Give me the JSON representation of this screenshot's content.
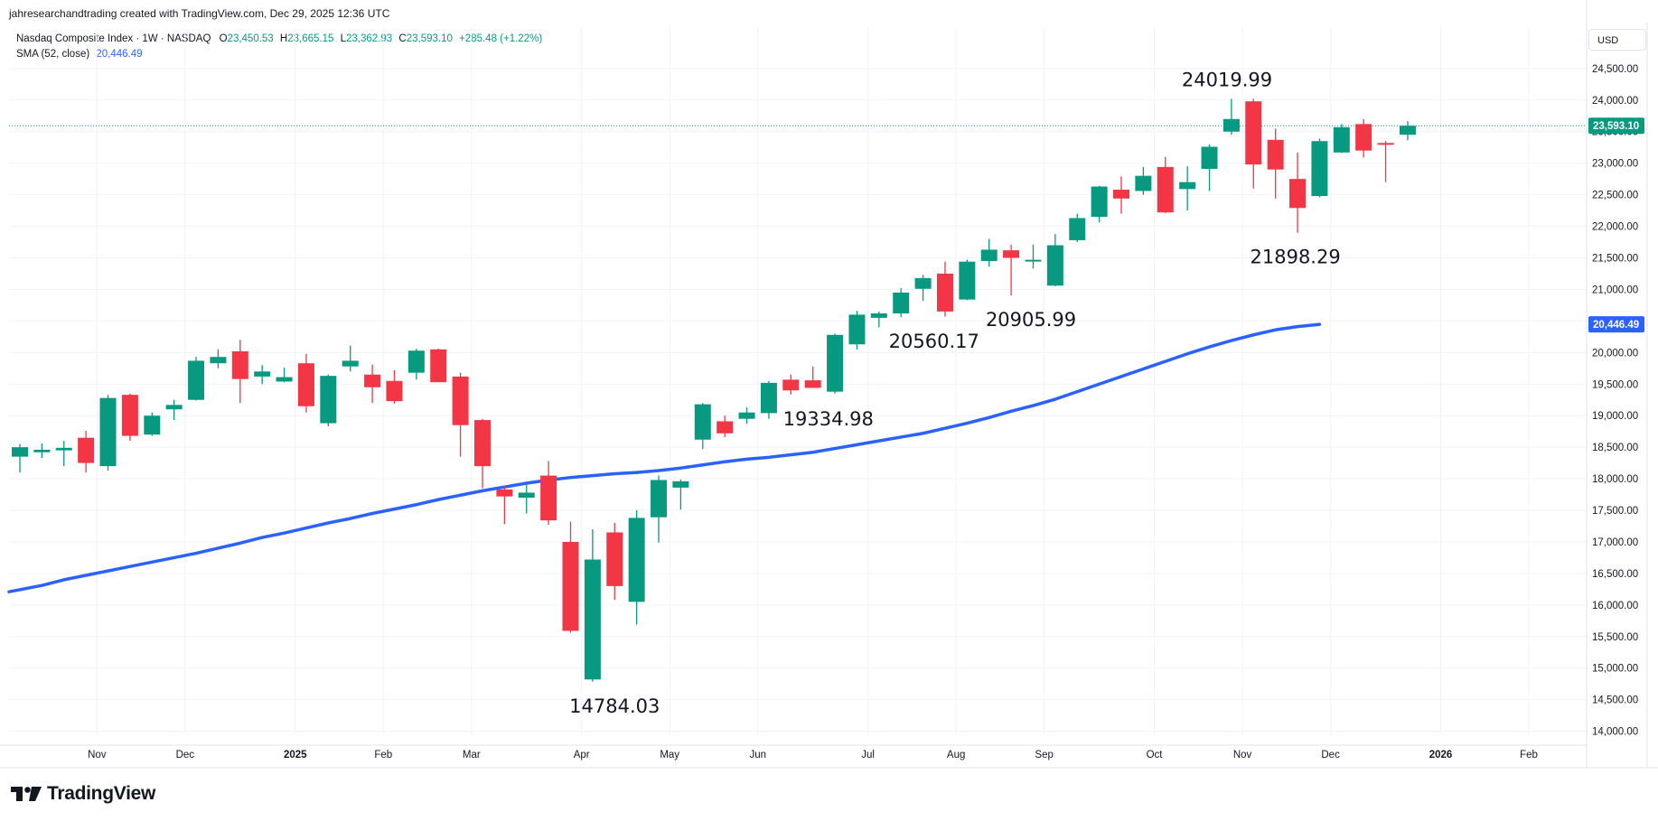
{
  "credit": "jahresearchandtrading created with TradingView.com, Dec 29, 2025 12:36 UTC",
  "legend": {
    "symbol": "Nasdaq Composite Index · 1W · NASDAQ",
    "o_label": "O",
    "o_value": "23,450.53",
    "h_label": "H",
    "h_value": "23,665.15",
    "l_label": "L",
    "l_value": "23,362.93",
    "c_label": "C",
    "c_value": "23,593.10",
    "change": "+285.48 (+1.22%)",
    "sma_label": "SMA (52, close)",
    "sma_value": "20,446.49"
  },
  "currency_button": "USD",
  "logo_text": "TradingView",
  "colors": {
    "up": "#089981",
    "down": "#f23645",
    "sma": "#2962ff",
    "grid": "#f0f3fa",
    "price_line": "#089981"
  },
  "chart_data": {
    "type": "candlestick",
    "title": "Nasdaq Composite Index · 1W · NASDAQ",
    "ylim": [
      13800,
      24700
    ],
    "y_ticks": [
      "14,000.00",
      "14,500.00",
      "15,000.00",
      "15,500.00",
      "16,000.00",
      "16,500.00",
      "17,000.00",
      "17,500.00",
      "18,000.00",
      "18,500.00",
      "19,000.00",
      "19,500.00",
      "20,000.00",
      "20,500.00",
      "21,000.00",
      "21,500.00",
      "22,000.00",
      "22,500.00",
      "23,000.00",
      "23,500.00",
      "24,000.00",
      "24,500.00"
    ],
    "x_ticks": [
      {
        "label": "Nov",
        "week": 3.5
      },
      {
        "label": "Dec",
        "week": 7.5
      },
      {
        "label": "2025",
        "week": 12.5
      },
      {
        "label": "Feb",
        "week": 16.5
      },
      {
        "label": "Mar",
        "week": 20.5
      },
      {
        "label": "Apr",
        "week": 25.5
      },
      {
        "label": "May",
        "week": 29.5
      },
      {
        "label": "Jun",
        "week": 33.5
      },
      {
        "label": "Jul",
        "week": 38.5
      },
      {
        "label": "Aug",
        "week": 42.5
      },
      {
        "label": "Sep",
        "week": 46.5
      },
      {
        "label": "Oct",
        "week": 51.5
      },
      {
        "label": "Nov",
        "week": 55.5
      },
      {
        "label": "Dec",
        "week": 59.5
      },
      {
        "label": "2026",
        "week": 64.5
      },
      {
        "label": "Feb",
        "week": 68.5
      }
    ],
    "candles": [
      {
        "o": 18350,
        "h": 18550,
        "l": 18100,
        "c": 18500
      },
      {
        "o": 18420,
        "h": 18560,
        "l": 18330,
        "c": 18460
      },
      {
        "o": 18450,
        "h": 18600,
        "l": 18200,
        "c": 18490
      },
      {
        "o": 18650,
        "h": 18760,
        "l": 18100,
        "c": 18250
      },
      {
        "o": 18200,
        "h": 19330,
        "l": 18130,
        "c": 19280
      },
      {
        "o": 19330,
        "h": 19350,
        "l": 18600,
        "c": 18680
      },
      {
        "o": 18700,
        "h": 19050,
        "l": 18680,
        "c": 19000
      },
      {
        "o": 19100,
        "h": 19250,
        "l": 18930,
        "c": 19170
      },
      {
        "o": 19250,
        "h": 19930,
        "l": 19240,
        "c": 19870
      },
      {
        "o": 19830,
        "h": 20050,
        "l": 19750,
        "c": 19930
      },
      {
        "o": 20020,
        "h": 20200,
        "l": 19200,
        "c": 19580
      },
      {
        "o": 19620,
        "h": 19800,
        "l": 19500,
        "c": 19700
      },
      {
        "o": 19540,
        "h": 19760,
        "l": 19530,
        "c": 19610
      },
      {
        "o": 19830,
        "h": 19980,
        "l": 19050,
        "c": 19150
      },
      {
        "o": 18880,
        "h": 19650,
        "l": 18830,
        "c": 19630
      },
      {
        "o": 19780,
        "h": 20110,
        "l": 19700,
        "c": 19870
      },
      {
        "o": 19650,
        "h": 19810,
        "l": 19200,
        "c": 19450
      },
      {
        "o": 19550,
        "h": 19720,
        "l": 19190,
        "c": 19230
      },
      {
        "o": 19680,
        "h": 20060,
        "l": 19570,
        "c": 20030
      },
      {
        "o": 20050,
        "h": 20060,
        "l": 19530,
        "c": 19530
      },
      {
        "o": 19620,
        "h": 19680,
        "l": 18350,
        "c": 18850
      },
      {
        "o": 18930,
        "h": 18950,
        "l": 17850,
        "c": 18200
      },
      {
        "o": 17830,
        "h": 17890,
        "l": 17280,
        "c": 17720
      },
      {
        "o": 17700,
        "h": 17920,
        "l": 17450,
        "c": 17780
      },
      {
        "o": 18050,
        "h": 18280,
        "l": 17270,
        "c": 17340
      },
      {
        "o": 17000,
        "h": 17320,
        "l": 15560,
        "c": 15590
      },
      {
        "o": 14820,
        "h": 17200,
        "l": 14784.03,
        "c": 16720
      },
      {
        "o": 17150,
        "h": 17300,
        "l": 16080,
        "c": 16300
      },
      {
        "o": 16050,
        "h": 17500,
        "l": 15690,
        "c": 17380
      },
      {
        "o": 17390,
        "h": 18050,
        "l": 16990,
        "c": 17980
      },
      {
        "o": 17860,
        "h": 17990,
        "l": 17510,
        "c": 17960
      },
      {
        "o": 18620,
        "h": 19200,
        "l": 18470,
        "c": 19180
      },
      {
        "o": 18910,
        "h": 19000,
        "l": 18660,
        "c": 18720
      },
      {
        "o": 18950,
        "h": 19130,
        "l": 18870,
        "c": 19050
      },
      {
        "o": 19040,
        "h": 19550,
        "l": 18950,
        "c": 19520
      },
      {
        "o": 19570,
        "h": 19650,
        "l": 19334.98,
        "c": 19400
      },
      {
        "o": 19560,
        "h": 19780,
        "l": 19440,
        "c": 19440
      },
      {
        "o": 19380,
        "h": 20300,
        "l": 19350,
        "c": 20280
      },
      {
        "o": 20130,
        "h": 20660,
        "l": 20050,
        "c": 20600
      },
      {
        "o": 20550,
        "h": 20650,
        "l": 20400,
        "c": 20620
      },
      {
        "o": 20620,
        "h": 21020,
        "l": 20560.17,
        "c": 20950
      },
      {
        "o": 21010,
        "h": 21230,
        "l": 20820,
        "c": 21180
      },
      {
        "o": 21250,
        "h": 21440,
        "l": 20570,
        "c": 20650
      },
      {
        "o": 20840,
        "h": 21470,
        "l": 20830,
        "c": 21440
      },
      {
        "o": 21450,
        "h": 21800,
        "l": 21360,
        "c": 21630
      },
      {
        "o": 21620,
        "h": 21710,
        "l": 20905.99,
        "c": 21500
      },
      {
        "o": 21460,
        "h": 21710,
        "l": 21330,
        "c": 21470
      },
      {
        "o": 21060,
        "h": 21880,
        "l": 21050,
        "c": 21700
      },
      {
        "o": 21780,
        "h": 22200,
        "l": 21750,
        "c": 22130
      },
      {
        "o": 22150,
        "h": 22640,
        "l": 22060,
        "c": 22630
      },
      {
        "o": 22580,
        "h": 22790,
        "l": 22200,
        "c": 22440
      },
      {
        "o": 22560,
        "h": 22940,
        "l": 22500,
        "c": 22800
      },
      {
        "o": 22940,
        "h": 23100,
        "l": 22210,
        "c": 22220
      },
      {
        "o": 22590,
        "h": 22950,
        "l": 22250,
        "c": 22700
      },
      {
        "o": 22910,
        "h": 23300,
        "l": 22560,
        "c": 23260
      },
      {
        "o": 23500,
        "h": 24019.99,
        "l": 23450,
        "c": 23700
      },
      {
        "o": 23980,
        "h": 24020,
        "l": 22600,
        "c": 22980
      },
      {
        "o": 23370,
        "h": 23550,
        "l": 22440,
        "c": 22900
      },
      {
        "o": 22750,
        "h": 23170,
        "l": 21898.29,
        "c": 22290
      },
      {
        "o": 22480,
        "h": 23390,
        "l": 22460,
        "c": 23350
      },
      {
        "o": 23170,
        "h": 23620,
        "l": 23160,
        "c": 23570
      },
      {
        "o": 23620,
        "h": 23700,
        "l": 23090,
        "c": 23200
      },
      {
        "o": 23320,
        "h": 23350,
        "l": 22700,
        "c": 23300
      },
      {
        "o": 23450.53,
        "h": 23665.15,
        "l": 23362.93,
        "c": 23593.1
      }
    ],
    "sma_52": [
      16210,
      16310,
      16400,
      16470,
      16540,
      16610,
      16680,
      16750,
      16820,
      16900,
      16980,
      17070,
      17140,
      17220,
      17300,
      17370,
      17450,
      17520,
      17590,
      17670,
      17740,
      17810,
      17870,
      17930,
      17980,
      18020,
      18050,
      18080,
      18100,
      18130,
      18170,
      18220,
      18270,
      18310,
      18340,
      18380,
      18420,
      18480,
      18540,
      18600,
      18660,
      18720,
      18800,
      18880,
      18970,
      19070,
      19160,
      19260,
      19380,
      19500,
      19620,
      19740,
      19860,
      19980,
      20090,
      20190,
      20280,
      20360,
      20410,
      20446.49
    ],
    "sma_start_week": 4,
    "annotations": [
      {
        "text": "24019.99",
        "week": 54.8,
        "price": 24019.99,
        "pos": "above"
      },
      {
        "text": "21898.29",
        "week": 57.9,
        "price": 21898.29,
        "pos": "below"
      },
      {
        "text": "20905.99",
        "week": 45.9,
        "price": 20905.99,
        "pos": "below"
      },
      {
        "text": "20560.17",
        "week": 41.5,
        "price": 20560.17,
        "pos": "below"
      },
      {
        "text": "19334.98",
        "week": 36.7,
        "price": 19334.98,
        "pos": "below"
      },
      {
        "text": "14784.03",
        "week": 27.0,
        "price": 14784.03,
        "pos": "below"
      }
    ],
    "last_price_label": "23,593.10",
    "sma_price_label": "20,446.49"
  }
}
